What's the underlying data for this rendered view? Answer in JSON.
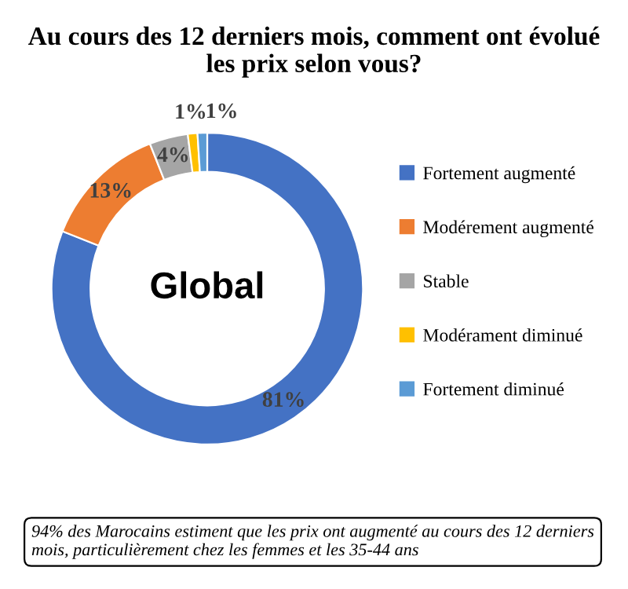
{
  "chart_data": {
    "type": "donut",
    "title": "Au cours des 12 derniers mois, comment ont évolué\nles prix selon vous?",
    "categories": [
      "Fortement augmenté",
      "Modérement augmenté",
      "Stable",
      "Modérament diminué",
      "Fortement diminué"
    ],
    "values": [
      81,
      13,
      4,
      1,
      1
    ],
    "colors": [
      "#4472c4",
      "#ed7d31",
      "#a5a5a5",
      "#ffc000",
      "#5b9bd5"
    ],
    "value_labels": [
      "81%",
      "13%",
      "4%",
      "1%",
      "1%"
    ],
    "legend": "right",
    "annotations": [
      "Global",
      "94% des Marocains estiment que les prix ont augmenté au cours des 12 derniers mois, particulièrement chez les femmes et les 35-44 ans"
    ]
  }
}
